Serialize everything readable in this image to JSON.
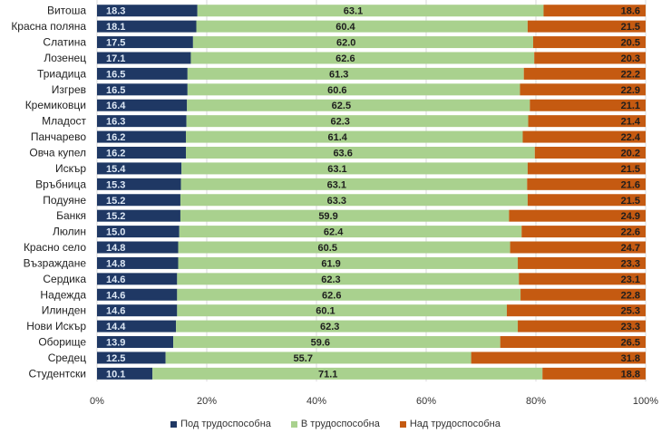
{
  "chart_data": {
    "type": "bar",
    "orientation": "horizontal",
    "stacked": true,
    "normalized": "percent",
    "title": "",
    "xlabel": "",
    "ylabel": "",
    "xlim": [
      0,
      100
    ],
    "x_ticks": [
      "0%",
      "20%",
      "40%",
      "60%",
      "80%",
      "100%"
    ],
    "grid": "vertical",
    "legend_position": "bottom",
    "categories": [
      "Витоша",
      "Красна поляна",
      "Слатина",
      "Лозенец",
      "Триадица",
      "Изгрев",
      "Кремиковци",
      "Младост",
      "Панчарево",
      "Овча купел",
      "Искър",
      "Връбница",
      "Подуяне",
      "Банкя",
      "Люлин",
      "Красно село",
      "Възраждане",
      "Сердика",
      "Надежда",
      "Илинден",
      "Нови Искър",
      "Оборище",
      "Средец",
      "Студентски"
    ],
    "series": [
      {
        "name": "Под трудоспособна",
        "color": "#1f3864",
        "values": [
          18.3,
          18.1,
          17.5,
          17.1,
          16.5,
          16.5,
          16.4,
          16.3,
          16.2,
          16.2,
          15.4,
          15.3,
          15.2,
          15.2,
          15.0,
          14.8,
          14.8,
          14.6,
          14.6,
          14.6,
          14.4,
          13.9,
          12.5,
          10.1
        ]
      },
      {
        "name": "В трудоспособна",
        "color": "#a9d18e",
        "values": [
          63.1,
          60.4,
          62.0,
          62.6,
          61.3,
          60.6,
          62.5,
          62.3,
          61.4,
          63.6,
          63.1,
          63.1,
          63.3,
          59.9,
          62.4,
          60.5,
          61.9,
          62.3,
          62.6,
          60.1,
          62.3,
          59.6,
          55.7,
          71.1
        ]
      },
      {
        "name": "Над трудоспособна",
        "color": "#c55a11",
        "values": [
          18.6,
          21.5,
          20.5,
          20.3,
          22.2,
          22.9,
          21.1,
          21.4,
          22.4,
          20.2,
          21.5,
          21.6,
          21.5,
          24.9,
          22.6,
          24.7,
          23.3,
          23.1,
          22.8,
          25.3,
          23.3,
          26.5,
          31.8,
          18.8
        ]
      }
    ],
    "data_labels": true
  }
}
